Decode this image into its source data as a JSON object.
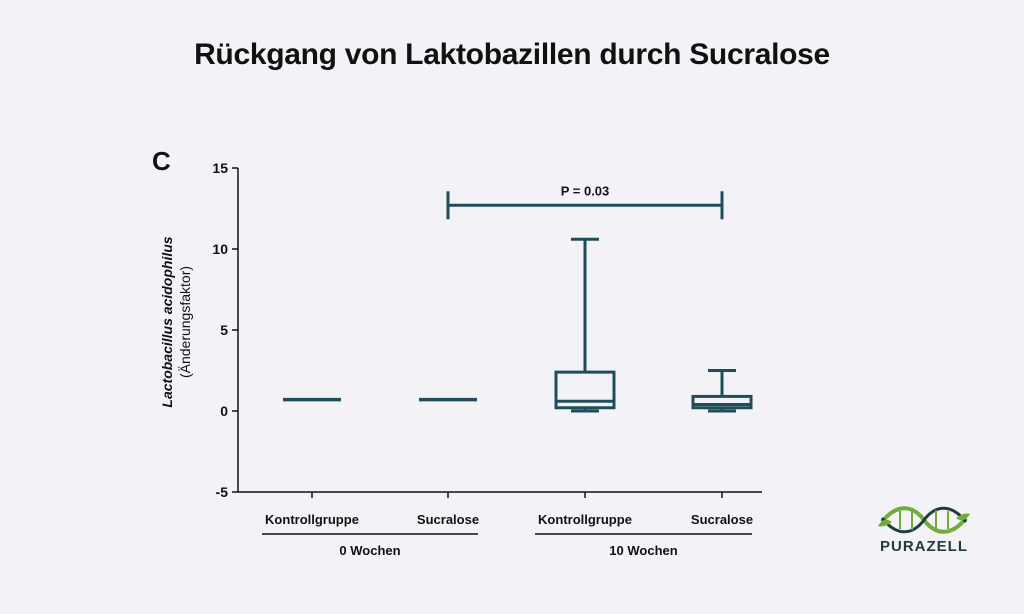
{
  "title": "Rückgang von Laktobazillen durch Sucralose",
  "panel_letter": "C",
  "brand": "PURAZELL",
  "colors": {
    "box": "#1f4e5a",
    "text": "#111111",
    "logo_green": "#6fae3c",
    "logo_dark": "#1f3b3a"
  },
  "chart_data": {
    "type": "box",
    "ylabel_italic": "Lactobacillus acidophilus",
    "ylabel_sub": "(Änderungsfaktor)",
    "ylim": [
      -5,
      15
    ],
    "yticks": [
      15,
      10,
      5,
      0,
      -5
    ],
    "categories": [
      "Kontrollgruppe",
      "Sucralose",
      "Kontrollgruppe",
      "Sucralose"
    ],
    "groups": [
      {
        "label": "0 Wochen",
        "members": [
          0,
          1
        ]
      },
      {
        "label": "10 Wochen",
        "members": [
          2,
          3
        ]
      }
    ],
    "boxes": [
      {
        "min": 0.7,
        "q1": 0.7,
        "median": 0.7,
        "q3": 0.7,
        "max": 0.7
      },
      {
        "min": 0.7,
        "q1": 0.7,
        "median": 0.7,
        "q3": 0.7,
        "max": 0.7
      },
      {
        "min": 0.0,
        "q1": 0.2,
        "median": 0.6,
        "q3": 2.4,
        "max": 10.6
      },
      {
        "min": 0.0,
        "q1": 0.2,
        "median": 0.4,
        "q3": 0.9,
        "max": 2.5
      }
    ],
    "significance": {
      "label": "P = 0.03",
      "from": 1,
      "to": 3,
      "y": 12.7
    },
    "grid": false,
    "legend": "none"
  }
}
